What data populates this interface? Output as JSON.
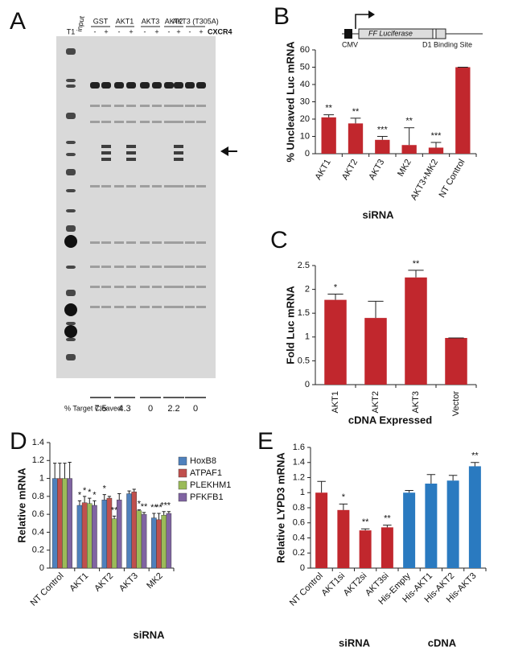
{
  "panel_labels": [
    "A",
    "B",
    "C",
    "D",
    "E"
  ],
  "gel": {
    "lanes": [
      "T1",
      "input",
      "GST",
      "AKT1",
      "AKT3",
      "AKT2",
      "AKT3 (T305A)"
    ],
    "conditions": [
      "-",
      "+",
      "-",
      "+",
      "-",
      "+",
      "-",
      "+",
      "-",
      "+"
    ],
    "treatment": "CXCR4",
    "cleaved_label": "% Target Cleaved:",
    "cleaved": [
      "7.5",
      "4.3",
      "0",
      "2.2",
      "0"
    ]
  },
  "schematic": {
    "promoter": "CMV",
    "gene": "FF Luciferase",
    "site": "D1 Binding Site"
  },
  "chart_data": [
    {
      "type": "bar",
      "ylabel": "% Uncleaved Luc mRNA",
      "xlabel": "siRNA",
      "categories": [
        "AKT1",
        "AKT2",
        "AKT3",
        "MK2",
        "AKT3+MK2",
        "NT Control"
      ],
      "values": [
        21,
        17.5,
        8,
        5,
        3.5,
        50
      ],
      "errors": [
        1.5,
        3,
        2,
        10,
        3,
        0
      ],
      "annotations": [
        "**",
        "**",
        "***",
        "**",
        "***",
        null
      ],
      "color": "#c1272d",
      "ylim": [
        0,
        60
      ],
      "yticks": [
        0,
        10,
        20,
        30,
        40,
        50,
        60
      ]
    },
    {
      "type": "bar",
      "ylabel": "Fold Luc mRNA",
      "xlabel": "cDNA Expressed",
      "categories": [
        "AKT1",
        "AKT2",
        "AKT3",
        "Vector"
      ],
      "values": [
        1.78,
        1.4,
        2.25,
        0.98
      ],
      "errors": [
        0.12,
        0.35,
        0.15,
        0
      ],
      "annotations": [
        "*",
        null,
        "**",
        null
      ],
      "color": "#c1272d",
      "ylim": [
        0,
        2.5
      ],
      "yticks": [
        0,
        0.5,
        1,
        1.5,
        2,
        2.5
      ]
    },
    {
      "type": "grouped-bar",
      "ylabel": "Relative mRNA",
      "xlabel": "siRNA",
      "categories": [
        "NT Control",
        "AKT1",
        "AKT2",
        "AKT3",
        "MK2"
      ],
      "series": [
        {
          "name": "HoxB8",
          "color": "#4f81bd",
          "values": [
            1,
            0.7,
            0.76,
            0.83,
            0.56
          ],
          "errors": [
            0.17,
            0.05,
            0.06,
            0.03,
            0.05
          ],
          "annotations": [
            null,
            "*",
            "*",
            null,
            "**"
          ]
        },
        {
          "name": "ATPAF1",
          "color": "#c0504d",
          "values": [
            1,
            0.73,
            0.78,
            0.85,
            0.54
          ],
          "errors": [
            0.17,
            0.07,
            0.02,
            0.03,
            0.07
          ],
          "annotations": [
            null,
            "*",
            null,
            null,
            "**"
          ]
        },
        {
          "name": "PLEKHM1",
          "color": "#9bbb59",
          "values": [
            1,
            0.72,
            0.55,
            0.64,
            0.59
          ],
          "errors": [
            0.17,
            0.06,
            0.03,
            0.01,
            0.04
          ],
          "annotations": [
            null,
            "*",
            "**",
            "*",
            "**"
          ]
        },
        {
          "name": "PFKFB1",
          "color": "#8064a2",
          "values": [
            1,
            0.7,
            0.76,
            0.6,
            0.61
          ],
          "errors": [
            0.18,
            0.05,
            0.07,
            0.02,
            0.02
          ],
          "annotations": [
            null,
            "*",
            null,
            "**",
            "*"
          ]
        }
      ],
      "ylim": [
        0,
        1.4
      ],
      "yticks": [
        0,
        0.2,
        0.4,
        0.6,
        0.8,
        1,
        1.2,
        1.4
      ]
    },
    {
      "type": "bar",
      "ylabel": "Relative LYPD3 mRNA",
      "categories": [
        "NT Control",
        "AKT1si",
        "AKT2si",
        "AKT3si",
        "His-Empty",
        "His-AKT1",
        "His-AKT2",
        "His-AKT3"
      ],
      "groups": [
        "siRNA",
        "cDNA"
      ],
      "values": [
        1,
        0.77,
        0.5,
        0.54,
        1,
        1.12,
        1.16,
        1.35
      ],
      "errors": [
        0.15,
        0.08,
        0.02,
        0.03,
        0.03,
        0.12,
        0.07,
        0.05
      ],
      "annotations": [
        null,
        "*",
        "**",
        "**",
        null,
        null,
        null,
        "**"
      ],
      "colors": [
        "#c1272d",
        "#c1272d",
        "#c1272d",
        "#c1272d",
        "#2a7ac0",
        "#2a7ac0",
        "#2a7ac0",
        "#2a7ac0"
      ],
      "ylim": [
        0,
        1.6
      ],
      "yticks": [
        0,
        0.2,
        0.4,
        0.6,
        0.8,
        1,
        1.2,
        1.4,
        1.6
      ]
    }
  ]
}
